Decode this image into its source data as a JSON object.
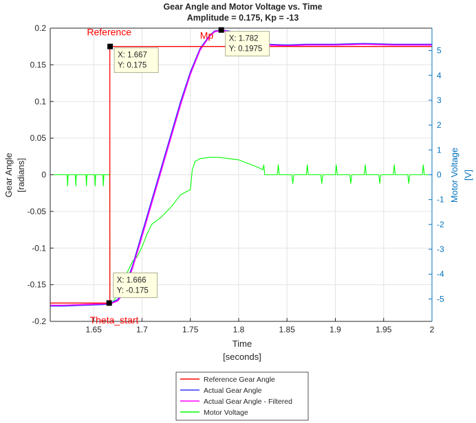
{
  "chart_data": {
    "type": "line",
    "title": "Gear Angle and Motor Voltage vs. Time",
    "subtitle": "Amplitude = 0.175, Kp = -13",
    "xlabel": [
      "Time",
      "[seconds]"
    ],
    "ylabel_left": [
      "Gear Angle",
      "[radians]"
    ],
    "ylabel_right": [
      "Motor Voltage",
      "[V]"
    ],
    "xlim": [
      1.605,
      2.0
    ],
    "ylim_left": [
      -0.2,
      0.2
    ],
    "ylim_right": [
      -5.9,
      5.9
    ],
    "x_ticks": [
      "1.65",
      "1.7",
      "1.75",
      "1.8",
      "1.85",
      "1.9",
      "1.95",
      "2"
    ],
    "y_left_ticks": [
      "-0.2",
      "-0.15",
      "-0.1",
      "-0.05",
      "0",
      "0.05",
      "0.1",
      "0.15",
      "0.2"
    ],
    "y_right_ticks": [
      "-5",
      "-4",
      "-3",
      "-2",
      "-1",
      "0",
      "1",
      "2",
      "3",
      "4",
      "5"
    ],
    "grid": true,
    "legend_position": "bottom",
    "colors": {
      "reference": "#FF0000",
      "actual": "#3333FF",
      "filtered": "#FF00FF",
      "voltage": "#00FF00",
      "right_axis": "#0072BD"
    },
    "series": [
      {
        "name": "Reference Gear Angle",
        "axis": "left",
        "x": [
          1.605,
          1.6667,
          1.6667,
          2.0
        ],
        "y": [
          -0.175,
          -0.175,
          0.175,
          0.175
        ]
      },
      {
        "name": "Actual Gear Angle",
        "axis": "left",
        "x": [
          1.605,
          1.62,
          1.64,
          1.66,
          1.667,
          1.675,
          1.68,
          1.69,
          1.7,
          1.71,
          1.72,
          1.73,
          1.74,
          1.75,
          1.76,
          1.77,
          1.775,
          1.782,
          1.79,
          1.8,
          1.81,
          1.82,
          1.83,
          1.85,
          1.87,
          1.9,
          1.93,
          1.96,
          2.0
        ],
        "y": [
          -0.179,
          -0.179,
          -0.178,
          -0.177,
          -0.176,
          -0.17,
          -0.16,
          -0.125,
          -0.08,
          -0.035,
          0.01,
          0.055,
          0.1,
          0.14,
          0.172,
          0.19,
          0.196,
          0.1975,
          0.196,
          0.19,
          0.184,
          0.18,
          0.178,
          0.177,
          0.178,
          0.178,
          0.179,
          0.178,
          0.178
        ]
      },
      {
        "name": "Actual Gear Angle - Filtered",
        "axis": "left",
        "x": [
          1.605,
          1.62,
          1.64,
          1.66,
          1.667,
          1.675,
          1.68,
          1.69,
          1.7,
          1.71,
          1.72,
          1.73,
          1.74,
          1.75,
          1.76,
          1.77,
          1.775,
          1.782,
          1.79,
          1.8,
          1.81,
          1.82,
          1.83,
          1.85,
          1.87,
          1.9,
          1.93,
          1.96,
          2.0
        ],
        "y": [
          -0.178,
          -0.178,
          -0.177,
          -0.176,
          -0.176,
          -0.172,
          -0.163,
          -0.128,
          -0.084,
          -0.039,
          0.006,
          0.051,
          0.096,
          0.137,
          0.17,
          0.189,
          0.195,
          0.197,
          0.195,
          0.189,
          0.183,
          0.179,
          0.177,
          0.176,
          0.177,
          0.177,
          0.178,
          0.177,
          0.177
        ]
      },
      {
        "name": "Motor Voltage",
        "axis": "right",
        "x": [
          1.605,
          1.6225,
          1.623,
          1.6235,
          1.631,
          1.6315,
          1.632,
          1.642,
          1.6425,
          1.643,
          1.651,
          1.6515,
          1.652,
          1.6595,
          1.66,
          1.6605,
          1.6665,
          1.6668,
          1.668,
          1.672,
          1.675,
          1.68,
          1.685,
          1.69,
          1.695,
          1.7,
          1.705,
          1.71,
          1.72,
          1.73,
          1.74,
          1.75,
          1.752,
          1.755,
          1.758,
          1.76,
          1.77,
          1.78,
          1.79,
          1.8,
          1.81,
          1.82,
          1.825,
          1.826,
          1.827,
          1.84,
          1.841,
          1.842,
          1.855,
          1.856,
          1.857,
          1.87,
          1.871,
          1.872,
          1.885,
          1.886,
          1.887,
          1.9,
          1.901,
          1.902,
          1.915,
          1.916,
          1.917,
          1.93,
          1.931,
          1.932,
          1.945,
          1.946,
          1.947,
          1.96,
          1.961,
          1.962,
          1.975,
          1.976,
          1.977,
          1.99,
          1.991,
          1.992,
          2.0
        ],
        "y": [
          0,
          0,
          -0.45,
          0,
          0,
          -0.45,
          0,
          0,
          -0.45,
          0,
          0,
          -0.45,
          0,
          0,
          -0.45,
          0,
          0,
          -5.25,
          -5.2,
          -5.0,
          -4.6,
          -4.3,
          -3.9,
          -3.5,
          -3.3,
          -2.9,
          -2.4,
          -2.0,
          -1.7,
          -1.3,
          -0.8,
          -0.6,
          0.2,
          0.55,
          0.6,
          0.65,
          0.7,
          0.7,
          0.65,
          0.6,
          0.45,
          0.3,
          0.2,
          0.4,
          0,
          0,
          0.4,
          0,
          0,
          -0.35,
          0,
          0,
          0.4,
          0,
          0,
          -0.35,
          0,
          0,
          0.4,
          0,
          0,
          -0.35,
          0,
          0,
          0.4,
          0,
          0,
          -0.35,
          0,
          0,
          0.4,
          0,
          0,
          -0.35,
          0,
          0,
          0.4,
          0,
          0
        ]
      }
    ],
    "datatips": [
      {
        "x": 1.667,
        "y": 0.175,
        "lines": [
          "X: 1.667",
          "Y: 0.175"
        ],
        "box": "right"
      },
      {
        "x": 1.666,
        "y": -0.175,
        "lines": [
          "X: 1.666",
          "Y: -0.175"
        ],
        "box": "upright"
      },
      {
        "x": 1.782,
        "y": 0.1975,
        "lines": [
          "X: 1.782",
          "Y: 0.1975"
        ],
        "box": "right"
      }
    ],
    "annotations": [
      {
        "text": "Reference",
        "x": 1.643,
        "y": 0.195
      },
      {
        "text": "Mp",
        "x": 1.76,
        "y": 0.19
      },
      {
        "text": "Theta_start",
        "x": 1.646,
        "y": -0.198
      }
    ],
    "legend": [
      {
        "label": "Reference Gear Angle",
        "color": "#FF0000"
      },
      {
        "label": "Actual Gear Angle",
        "color": "#3333FF"
      },
      {
        "label": "Actual Gear Angle - Filtered",
        "color": "#FF00FF"
      },
      {
        "label": "Motor Voltage",
        "color": "#00FF00"
      }
    ]
  }
}
